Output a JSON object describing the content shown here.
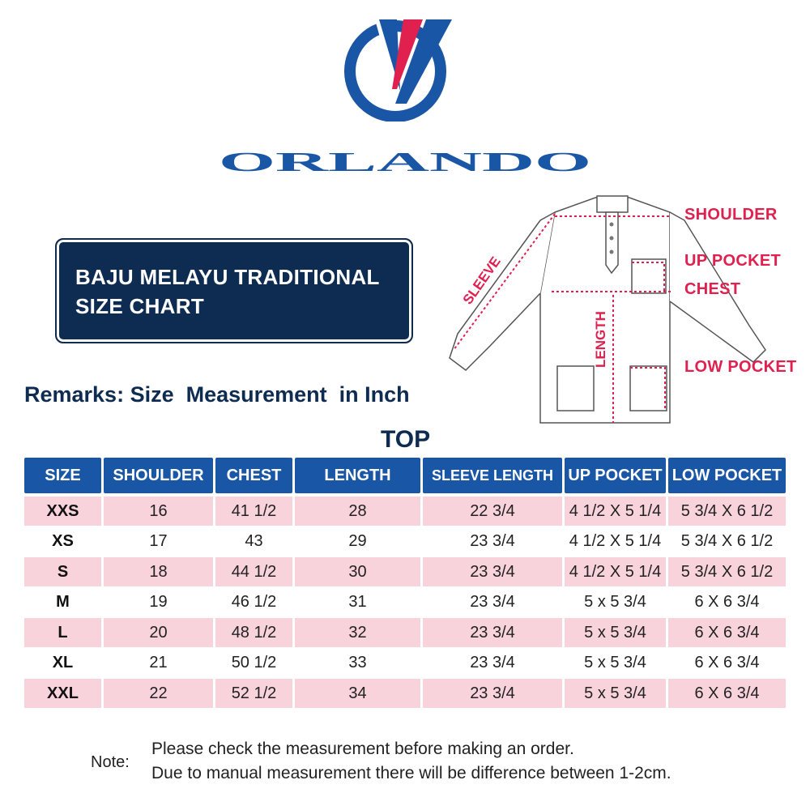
{
  "brand": {
    "name": "ORLANDO",
    "colors": {
      "navy": "#0e2c52",
      "blue": "#1a56a6",
      "red": "#e0204f",
      "pink_row": "#f9d3dc"
    }
  },
  "title_box": {
    "line1": "BAJU MELAYU TRADITIONAL",
    "line2": "SIZE CHART"
  },
  "remarks": "Remarks: Size  Measurement  in Inch",
  "section_label": "TOP",
  "garment_callouts": {
    "shoulder": "SHOULDER",
    "up_pocket": "UP POCKET",
    "chest": "CHEST",
    "low_pocket": "LOW POCKET",
    "sleeve": "SLEEVE",
    "length": "LENGTH"
  },
  "table": {
    "headers": [
      "SIZE",
      "SHOULDER",
      "CHEST",
      "LENGTH",
      "SLEEVE LENGTH",
      "UP POCKET",
      "LOW POCKET"
    ],
    "rows": [
      [
        "XXS",
        "16",
        "41 1/2",
        "28",
        "22 3/4",
        "4 1/2 X 5 1/4",
        "5 3/4 X 6 1/2"
      ],
      [
        "XS",
        "17",
        "43",
        "29",
        "23 3/4",
        "4 1/2 X 5 1/4",
        "5 3/4 X 6 1/2"
      ],
      [
        "S",
        "18",
        "44 1/2",
        "30",
        "23 3/4",
        "4 1/2 X 5 1/4",
        "5 3/4 X 6 1/2"
      ],
      [
        "M",
        "19",
        "46 1/2",
        "31",
        "23 3/4",
        "5 x 5 3/4",
        "6 X 6 3/4"
      ],
      [
        "L",
        "20",
        "48 1/2",
        "32",
        "23 3/4",
        "5 x 5 3/4",
        "6 X 6 3/4"
      ],
      [
        "XL",
        "21",
        "50 1/2",
        "33",
        "23 3/4",
        "5 x 5 3/4",
        "6 X 6 3/4"
      ],
      [
        "XXL",
        "22",
        "52 1/2",
        "34",
        "23 3/4",
        "5 x 5 3/4",
        "6 X 6 3/4"
      ]
    ],
    "pink_rows": [
      true,
      false,
      true,
      false,
      true,
      false,
      true
    ]
  },
  "note": {
    "label": "Note:",
    "line1": "Please check the measurement before making an order.",
    "line2": "Due to manual measurement there will be difference between 1-2cm."
  }
}
